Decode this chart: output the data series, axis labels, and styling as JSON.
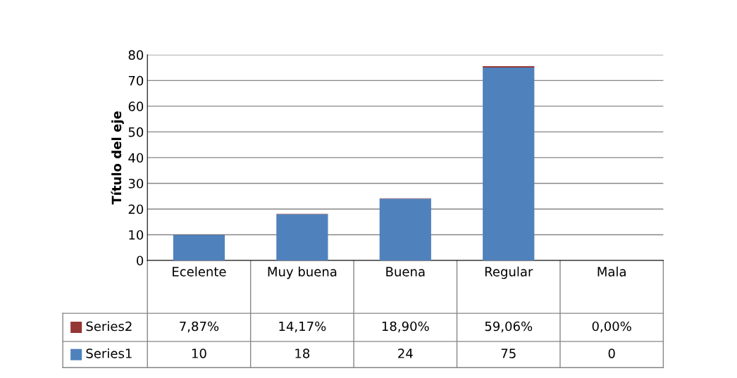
{
  "chart_data": {
    "type": "bar",
    "stacked": true,
    "ylabel": "Título del eje",
    "categories": [
      "Ecelente",
      "Muy buena",
      "Buena",
      "Regular",
      "Mala"
    ],
    "series": [
      {
        "name": "Series1",
        "color": "#4f81bd",
        "values": [
          10,
          18,
          24,
          75,
          0
        ],
        "value_labels": [
          "10",
          "18",
          "24",
          "75",
          "0"
        ]
      },
      {
        "name": "Series2",
        "color": "#953735",
        "values": [
          0.0787,
          0.1417,
          0.189,
          0.5906,
          0
        ],
        "value_labels": [
          "7,87%",
          "14,17%",
          "18,90%",
          "59,06%",
          "0,00%"
        ]
      }
    ],
    "ylim": [
      0,
      80
    ],
    "yticks": [
      0,
      10,
      20,
      30,
      40,
      50,
      60,
      70,
      80
    ],
    "grid": "y",
    "legend": "bottom"
  }
}
